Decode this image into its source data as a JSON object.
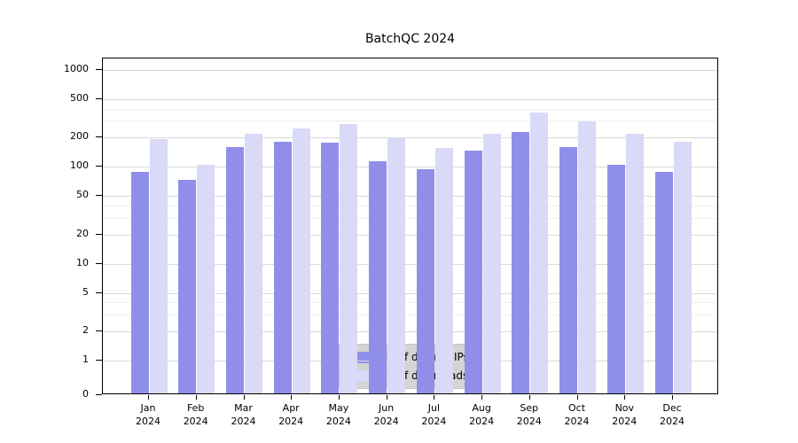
{
  "title": "BatchQC 2024",
  "chart_data": {
    "type": "bar",
    "title": "BatchQC 2024",
    "yscale": "log",
    "grid": true,
    "legend_position": "bottom-center",
    "year": "2024",
    "categories": [
      "Jan",
      "Feb",
      "Mar",
      "Apr",
      "May",
      "Jun",
      "Jul",
      "Aug",
      "Sep",
      "Oct",
      "Nov",
      "Dec"
    ],
    "series": [
      {
        "name": "Nb of distinct IPs",
        "color": "#8f8fea",
        "values": [
          85,
          70,
          155,
          175,
          170,
          110,
          90,
          140,
          220,
          155,
          100,
          85
        ]
      },
      {
        "name": "Nb of downloads",
        "color": "#d9d9f8",
        "values": [
          185,
          100,
          210,
          240,
          265,
          190,
          150,
          210,
          350,
          285,
          210,
          175
        ]
      }
    ],
    "yticks": [
      0,
      1,
      2,
      5,
      10,
      20,
      50,
      100,
      200,
      500,
      1000
    ],
    "minor_gridlines": [
      3,
      4,
      30,
      40,
      300,
      400
    ],
    "ylim": [
      0,
      1000
    ]
  }
}
